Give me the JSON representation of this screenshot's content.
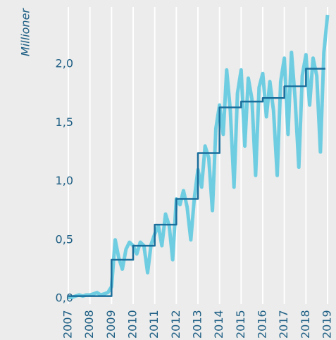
{
  "chart_data": {
    "type": "line",
    "ylabel": "Millioner",
    "xlim": [
      2007,
      2019
    ],
    "xticks": [
      2007,
      2008,
      2009,
      2010,
      2011,
      2012,
      2013,
      2014,
      2015,
      2016,
      2017,
      2018,
      2019
    ],
    "ylim": [
      0,
      2.5
    ],
    "yticks": [
      {
        "value": 0,
        "label": "0,0"
      },
      {
        "value": 0.5,
        "label": "0,5"
      },
      {
        "value": 1,
        "label": "1,0"
      },
      {
        "value": 1.5,
        "label": "1,5"
      },
      {
        "value": 2,
        "label": "2,0"
      }
    ],
    "grid": "x",
    "series": [
      {
        "color": "#6fcde2",
        "width": 5,
        "x": [
          2007,
          2007.17,
          2007.33,
          2007.5,
          2007.67,
          2007.83,
          2008,
          2008.17,
          2008.33,
          2008.5,
          2008.67,
          2008.83,
          2009,
          2009.17,
          2009.33,
          2009.5,
          2009.67,
          2009.83,
          2010,
          2010.17,
          2010.33,
          2010.5,
          2010.67,
          2010.83,
          2011,
          2011.17,
          2011.33,
          2011.5,
          2011.67,
          2011.83,
          2012,
          2012.17,
          2012.33,
          2012.5,
          2012.67,
          2012.83,
          2013,
          2013.17,
          2013.33,
          2013.5,
          2013.67,
          2013.83,
          2014,
          2014.17,
          2014.33,
          2014.5,
          2014.67,
          2014.83,
          2015,
          2015.17,
          2015.33,
          2015.5,
          2015.67,
          2015.83,
          2016,
          2016.17,
          2016.33,
          2016.5,
          2016.67,
          2016.83,
          2017,
          2017.17,
          2017.33,
          2017.5,
          2017.67,
          2017.83,
          2018,
          2018.17,
          2018.33,
          2018.5,
          2018.67,
          2018.83,
          2019
        ],
        "values": [
          0.01,
          0.01,
          0.02,
          0.03,
          0.02,
          0.03,
          0.03,
          0.04,
          0.05,
          0.03,
          0.04,
          0.05,
          0.1,
          0.5,
          0.35,
          0.25,
          0.42,
          0.48,
          0.45,
          0.38,
          0.48,
          0.45,
          0.22,
          0.46,
          0.55,
          0.62,
          0.45,
          0.72,
          0.62,
          0.33,
          0.85,
          0.8,
          0.92,
          0.78,
          0.5,
          0.85,
          1.1,
          0.95,
          1.3,
          1.2,
          0.75,
          1.45,
          1.65,
          1.4,
          1.95,
          1.6,
          0.95,
          1.75,
          1.95,
          1.3,
          1.88,
          1.7,
          1.05,
          1.8,
          1.92,
          1.55,
          1.85,
          1.6,
          1.05,
          1.85,
          2.05,
          1.4,
          2.1,
          1.7,
          1.12,
          1.9,
          2.08,
          1.65,
          2.05,
          1.9,
          1.25,
          2.1,
          2.42
        ]
      },
      {
        "color": "#1a6e9c",
        "width": 2.5,
        "drawstyle": "steps-post",
        "x": [
          2007,
          2009,
          2010,
          2011,
          2012,
          2013,
          2014,
          2015,
          2016,
          2017,
          2018,
          2018.9
        ],
        "values": [
          0.02,
          0.33,
          0.45,
          0.63,
          0.85,
          1.24,
          1.63,
          1.68,
          1.71,
          1.81,
          1.96,
          1.96
        ]
      }
    ]
  }
}
